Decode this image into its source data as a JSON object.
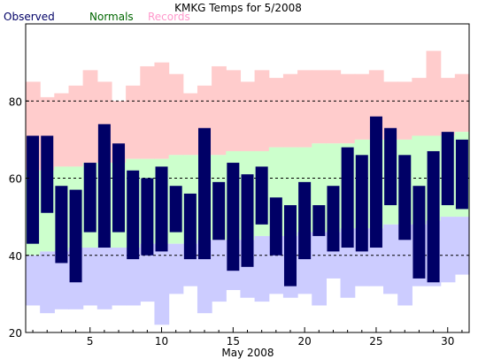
{
  "chart_data": {
    "type": "bar",
    "title": "KMKG Temps for 5/2008",
    "xlabel": "May 2008",
    "ylabel": "",
    "ylim": [
      20,
      100
    ],
    "yticks": [
      20,
      40,
      60,
      80
    ],
    "xlim": [
      0.5,
      31.5
    ],
    "xticks": [
      5,
      10,
      15,
      20,
      25,
      30
    ],
    "grid": "dashed at y ticks 40, 60, 80",
    "legend": [
      "Observed",
      "Normals",
      "Records"
    ],
    "legend_placement": "top-left, above plot",
    "colors": {
      "observed": "#000066",
      "normals": "#ccffcc",
      "records": "#ffcccc",
      "record_low": "#ccccff",
      "legend_observed": "#000066",
      "legend_normals": "#006600",
      "legend_records": "#ff99cc"
    },
    "days": [
      1,
      2,
      3,
      4,
      5,
      6,
      7,
      8,
      9,
      10,
      11,
      12,
      13,
      14,
      15,
      16,
      17,
      18,
      19,
      20,
      21,
      22,
      23,
      24,
      25,
      26,
      27,
      28,
      29,
      30,
      31
    ],
    "record_high": [
      85,
      81,
      82,
      84,
      88,
      85,
      80,
      84,
      89,
      90,
      87,
      82,
      84,
      89,
      88,
      85,
      88,
      86,
      87,
      88,
      88,
      88,
      87,
      87,
      88,
      85,
      85,
      86,
      93,
      86,
      87
    ],
    "normal_high": [
      62,
      62,
      63,
      63,
      64,
      64,
      64,
      65,
      65,
      65,
      66,
      66,
      66,
      66,
      67,
      67,
      67,
      68,
      68,
      68,
      69,
      69,
      69,
      70,
      70,
      70,
      70,
      71,
      71,
      71,
      72
    ],
    "normal_low": [
      40,
      41,
      41,
      42,
      42,
      42,
      42,
      42,
      43,
      43,
      43,
      43,
      44,
      44,
      44,
      44,
      45,
      45,
      45,
      46,
      46,
      46,
      47,
      47,
      47,
      48,
      48,
      48,
      49,
      50,
      50
    ],
    "record_low": [
      27,
      25,
      26,
      26,
      27,
      26,
      27,
      27,
      28,
      22,
      30,
      32,
      25,
      28,
      31,
      29,
      28,
      30,
      29,
      30,
      27,
      34,
      29,
      32,
      32,
      30,
      27,
      32,
      32,
      33,
      35
    ],
    "observed_high": [
      71,
      71,
      58,
      57,
      64,
      74,
      69,
      62,
      60,
      63,
      58,
      56,
      73,
      59,
      64,
      61,
      63,
      55,
      53,
      59,
      53,
      58,
      68,
      66,
      76,
      73,
      66,
      58,
      67,
      72,
      70
    ],
    "observed_low": [
      43,
      51,
      38,
      33,
      46,
      42,
      46,
      39,
      40,
      41,
      46,
      39,
      39,
      44,
      36,
      37,
      48,
      40,
      32,
      39,
      45,
      41,
      42,
      41,
      42,
      53,
      44,
      34,
      33,
      53,
      52
    ]
  }
}
